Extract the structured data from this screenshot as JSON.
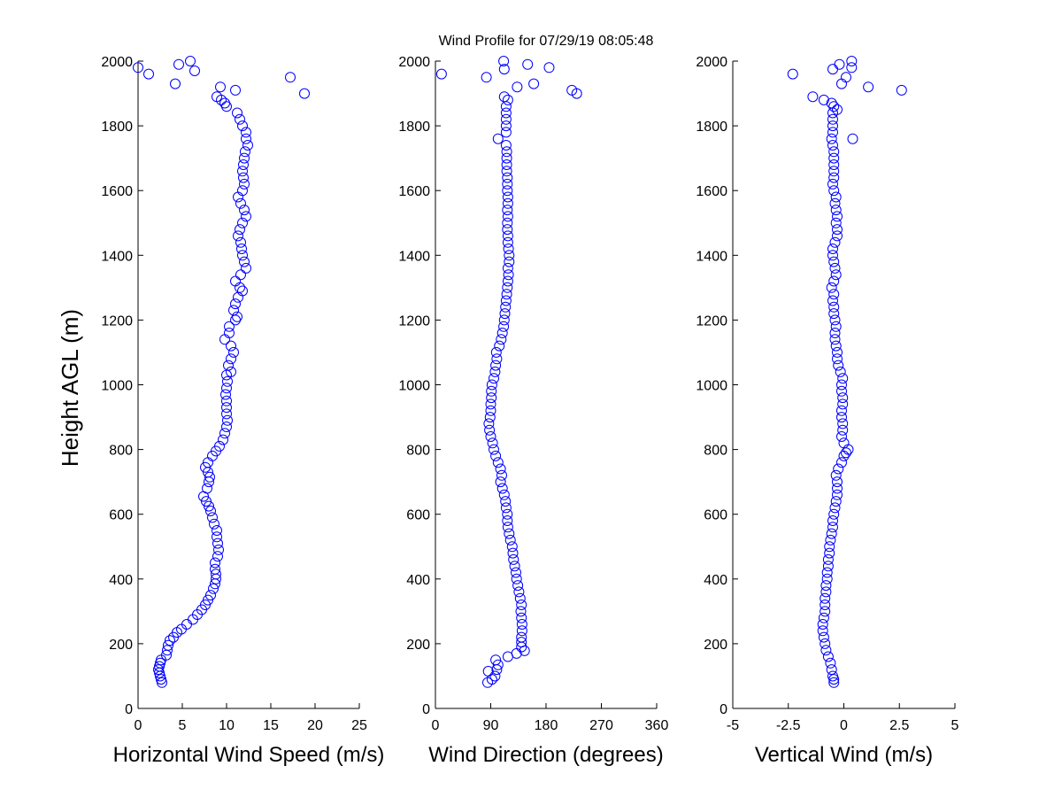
{
  "figure": {
    "title": "Wind Profile for  07/29/19 08:05:48",
    "ylabel": "Height AGL (m)",
    "marker_color": "#0000ff"
  },
  "chart_data": [
    {
      "type": "scatter",
      "name": "horizontal-wind-speed",
      "xlabel": "Horizontal Wind Speed (m/s)",
      "xlim": [
        0,
        25
      ],
      "xticks": [
        0,
        5,
        10,
        15,
        20,
        25
      ],
      "ylim": [
        0,
        2000
      ],
      "yticks": [
        0,
        200,
        400,
        600,
        800,
        1000,
        1200,
        1400,
        1600,
        1800,
        2000
      ],
      "grid": false,
      "points": [
        [
          2.7,
          80
        ],
        [
          2.6,
          90
        ],
        [
          2.5,
          100
        ],
        [
          2.4,
          110
        ],
        [
          2.3,
          120
        ],
        [
          2.4,
          130
        ],
        [
          2.5,
          140
        ],
        [
          2.6,
          150
        ],
        [
          3.2,
          165
        ],
        [
          3.3,
          180
        ],
        [
          3.4,
          195
        ],
        [
          3.6,
          210
        ],
        [
          4.0,
          220
        ],
        [
          4.4,
          235
        ],
        [
          4.9,
          245
        ],
        [
          5.5,
          260
        ],
        [
          6.2,
          275
        ],
        [
          6.7,
          290
        ],
        [
          7.2,
          305
        ],
        [
          7.6,
          320
        ],
        [
          7.9,
          335
        ],
        [
          8.2,
          350
        ],
        [
          8.5,
          370
        ],
        [
          8.7,
          385
        ],
        [
          8.8,
          400
        ],
        [
          8.8,
          415
        ],
        [
          8.7,
          430
        ],
        [
          8.7,
          450
        ],
        [
          9.0,
          470
        ],
        [
          9.1,
          490
        ],
        [
          9.0,
          510
        ],
        [
          8.9,
          530
        ],
        [
          8.9,
          550
        ],
        [
          8.6,
          570
        ],
        [
          8.4,
          590
        ],
        [
          8.2,
          610
        ],
        [
          8.0,
          625
        ],
        [
          7.7,
          640
        ],
        [
          7.4,
          655
        ],
        [
          7.8,
          680
        ],
        [
          8.0,
          700
        ],
        [
          8.1,
          715
        ],
        [
          7.9,
          730
        ],
        [
          7.6,
          745
        ],
        [
          7.9,
          760
        ],
        [
          8.4,
          780
        ],
        [
          8.8,
          795
        ],
        [
          9.2,
          810
        ],
        [
          9.6,
          830
        ],
        [
          9.8,
          850
        ],
        [
          10.0,
          870
        ],
        [
          10.1,
          890
        ],
        [
          10.0,
          910
        ],
        [
          10.0,
          930
        ],
        [
          10.0,
          950
        ],
        [
          9.9,
          970
        ],
        [
          10.0,
          990
        ],
        [
          10.1,
          1010
        ],
        [
          10.0,
          1030
        ],
        [
          10.5,
          1040
        ],
        [
          10.2,
          1060
        ],
        [
          10.5,
          1080
        ],
        [
          10.8,
          1100
        ],
        [
          10.5,
          1120
        ],
        [
          9.8,
          1140
        ],
        [
          10.3,
          1160
        ],
        [
          10.3,
          1180
        ],
        [
          11.0,
          1200
        ],
        [
          11.2,
          1210
        ],
        [
          10.8,
          1230
        ],
        [
          11.0,
          1250
        ],
        [
          11.3,
          1270
        ],
        [
          11.8,
          1290
        ],
        [
          11.5,
          1300
        ],
        [
          11.0,
          1320
        ],
        [
          11.6,
          1340
        ],
        [
          12.2,
          1360
        ],
        [
          12.0,
          1380
        ],
        [
          11.8,
          1400
        ],
        [
          11.7,
          1420
        ],
        [
          11.6,
          1440
        ],
        [
          11.3,
          1460
        ],
        [
          11.5,
          1480
        ],
        [
          11.8,
          1500
        ],
        [
          12.2,
          1520
        ],
        [
          12.0,
          1540
        ],
        [
          11.6,
          1560
        ],
        [
          11.3,
          1580
        ],
        [
          11.8,
          1600
        ],
        [
          12.0,
          1620
        ],
        [
          11.9,
          1640
        ],
        [
          11.8,
          1660
        ],
        [
          11.9,
          1680
        ],
        [
          12.0,
          1700
        ],
        [
          12.1,
          1720
        ],
        [
          12.4,
          1740
        ],
        [
          12.2,
          1760
        ],
        [
          12.2,
          1780
        ],
        [
          11.8,
          1800
        ],
        [
          11.5,
          1820
        ],
        [
          11.2,
          1840
        ],
        [
          10.0,
          1860
        ],
        [
          9.8,
          1870
        ],
        [
          9.4,
          1880
        ],
        [
          8.9,
          1890
        ],
        [
          11.0,
          1910
        ],
        [
          9.3,
          1920
        ],
        [
          17.2,
          1950
        ],
        [
          18.8,
          1900
        ],
        [
          4.2,
          1930
        ],
        [
          1.2,
          1960
        ],
        [
          0.0,
          1980
        ],
        [
          4.6,
          1990
        ],
        [
          5.9,
          2000
        ],
        [
          6.4,
          1970
        ]
      ]
    },
    {
      "type": "scatter",
      "name": "wind-direction",
      "xlabel": "Wind Direction (degrees)",
      "xlim": [
        0,
        360
      ],
      "xticks": [
        0,
        90,
        180,
        270,
        360
      ],
      "ylim": [
        0,
        2000
      ],
      "yticks": [
        0,
        200,
        400,
        600,
        800,
        1000,
        1200,
        1400,
        1600,
        1800,
        2000
      ],
      "grid": false,
      "points": [
        [
          85,
          80
        ],
        [
          92,
          90
        ],
        [
          97,
          100
        ],
        [
          86,
          115
        ],
        [
          100,
          120
        ],
        [
          102,
          135
        ],
        [
          98,
          150
        ],
        [
          118,
          160
        ],
        [
          132,
          170
        ],
        [
          145,
          178
        ],
        [
          140,
          190
        ],
        [
          140,
          205
        ],
        [
          140,
          220
        ],
        [
          141,
          240
        ],
        [
          141,
          260
        ],
        [
          140,
          280
        ],
        [
          139,
          300
        ],
        [
          140,
          320
        ],
        [
          138,
          340
        ],
        [
          136,
          360
        ],
        [
          134,
          380
        ],
        [
          132,
          400
        ],
        [
          131,
          420
        ],
        [
          129,
          440
        ],
        [
          127,
          460
        ],
        [
          126,
          480
        ],
        [
          125,
          500
        ],
        [
          122,
          520
        ],
        [
          120,
          540
        ],
        [
          118,
          560
        ],
        [
          117,
          580
        ],
        [
          117,
          600
        ],
        [
          115,
          620
        ],
        [
          114,
          640
        ],
        [
          112,
          660
        ],
        [
          109,
          680
        ],
        [
          106,
          700
        ],
        [
          108,
          720
        ],
        [
          106,
          740
        ],
        [
          102,
          760
        ],
        [
          98,
          780
        ],
        [
          95,
          800
        ],
        [
          93,
          820
        ],
        [
          90,
          840
        ],
        [
          88,
          860
        ],
        [
          87,
          880
        ],
        [
          89,
          900
        ],
        [
          90,
          920
        ],
        [
          90,
          940
        ],
        [
          91,
          960
        ],
        [
          91,
          980
        ],
        [
          92,
          1000
        ],
        [
          95,
          1020
        ],
        [
          97,
          1040
        ],
        [
          98,
          1060
        ],
        [
          100,
          1080
        ],
        [
          99,
          1100
        ],
        [
          104,
          1120
        ],
        [
          107,
          1140
        ],
        [
          109,
          1160
        ],
        [
          111,
          1180
        ],
        [
          112,
          1200
        ],
        [
          113,
          1220
        ],
        [
          114,
          1240
        ],
        [
          115,
          1260
        ],
        [
          116,
          1280
        ],
        [
          117,
          1300
        ],
        [
          118,
          1320
        ],
        [
          119,
          1340
        ],
        [
          118,
          1360
        ],
        [
          120,
          1380
        ],
        [
          120,
          1400
        ],
        [
          119,
          1420
        ],
        [
          118,
          1440
        ],
        [
          118,
          1460
        ],
        [
          117,
          1480
        ],
        [
          117,
          1500
        ],
        [
          118,
          1520
        ],
        [
          117,
          1540
        ],
        [
          118,
          1560
        ],
        [
          118,
          1580
        ],
        [
          117,
          1600
        ],
        [
          117,
          1620
        ],
        [
          117,
          1640
        ],
        [
          116,
          1660
        ],
        [
          116,
          1680
        ],
        [
          116,
          1700
        ],
        [
          116,
          1720
        ],
        [
          115,
          1740
        ],
        [
          102,
          1760
        ],
        [
          115,
          1780
        ],
        [
          115,
          1800
        ],
        [
          115,
          1820
        ],
        [
          115,
          1840
        ],
        [
          115,
          1860
        ],
        [
          118,
          1880
        ],
        [
          112,
          1890
        ],
        [
          230,
          1900
        ],
        [
          222,
          1910
        ],
        [
          133,
          1920
        ],
        [
          160,
          1930
        ],
        [
          83,
          1950
        ],
        [
          10,
          1960
        ],
        [
          112,
          1975
        ],
        [
          185,
          1980
        ],
        [
          150,
          1990
        ],
        [
          111,
          2000
        ]
      ]
    },
    {
      "type": "scatter",
      "name": "vertical-wind",
      "xlabel": "Vertical Wind (m/s)",
      "xlim": [
        -5,
        5
      ],
      "xticks": [
        -5,
        -2.5,
        0,
        2.5,
        5
      ],
      "xtick_labels": [
        "-5",
        "-2.5",
        "0",
        "2.5",
        "5"
      ],
      "ylim": [
        0,
        2000
      ],
      "yticks": [
        0,
        200,
        400,
        600,
        800,
        1000,
        1200,
        1400,
        1600,
        1800,
        2000
      ],
      "grid": false,
      "points": [
        [
          -0.45,
          80
        ],
        [
          -0.45,
          90
        ],
        [
          -0.5,
          100
        ],
        [
          -0.55,
          120
        ],
        [
          -0.6,
          140
        ],
        [
          -0.7,
          160
        ],
        [
          -0.8,
          180
        ],
        [
          -0.85,
          200
        ],
        [
          -0.9,
          220
        ],
        [
          -0.95,
          240
        ],
        [
          -0.95,
          260
        ],
        [
          -0.9,
          280
        ],
        [
          -0.85,
          300
        ],
        [
          -0.85,
          320
        ],
        [
          -0.85,
          340
        ],
        [
          -0.8,
          360
        ],
        [
          -0.8,
          380
        ],
        [
          -0.75,
          400
        ],
        [
          -0.75,
          420
        ],
        [
          -0.7,
          440
        ],
        [
          -0.7,
          460
        ],
        [
          -0.65,
          480
        ],
        [
          -0.65,
          500
        ],
        [
          -0.6,
          520
        ],
        [
          -0.55,
          540
        ],
        [
          -0.5,
          560
        ],
        [
          -0.5,
          580
        ],
        [
          -0.45,
          600
        ],
        [
          -0.4,
          620
        ],
        [
          -0.35,
          640
        ],
        [
          -0.3,
          660
        ],
        [
          -0.3,
          680
        ],
        [
          -0.3,
          700
        ],
        [
          -0.35,
          720
        ],
        [
          -0.25,
          740
        ],
        [
          -0.1,
          760
        ],
        [
          0.0,
          780
        ],
        [
          0.1,
          790
        ],
        [
          0.2,
          800
        ],
        [
          0.0,
          820
        ],
        [
          -0.1,
          840
        ],
        [
          -0.05,
          860
        ],
        [
          -0.05,
          880
        ],
        [
          -0.1,
          900
        ],
        [
          -0.1,
          920
        ],
        [
          -0.05,
          940
        ],
        [
          -0.05,
          960
        ],
        [
          -0.1,
          980
        ],
        [
          -0.1,
          1000
        ],
        [
          -0.05,
          1020
        ],
        [
          -0.15,
          1040
        ],
        [
          -0.25,
          1060
        ],
        [
          -0.3,
          1080
        ],
        [
          -0.3,
          1100
        ],
        [
          -0.35,
          1120
        ],
        [
          -0.4,
          1140
        ],
        [
          -0.4,
          1160
        ],
        [
          -0.35,
          1180
        ],
        [
          -0.4,
          1200
        ],
        [
          -0.45,
          1220
        ],
        [
          -0.45,
          1240
        ],
        [
          -0.5,
          1260
        ],
        [
          -0.45,
          1280
        ],
        [
          -0.55,
          1300
        ],
        [
          -0.45,
          1320
        ],
        [
          -0.35,
          1340
        ],
        [
          -0.4,
          1360
        ],
        [
          -0.45,
          1380
        ],
        [
          -0.5,
          1400
        ],
        [
          -0.5,
          1420
        ],
        [
          -0.4,
          1440
        ],
        [
          -0.3,
          1460
        ],
        [
          -0.3,
          1480
        ],
        [
          -0.35,
          1500
        ],
        [
          -0.3,
          1520
        ],
        [
          -0.35,
          1540
        ],
        [
          -0.4,
          1560
        ],
        [
          -0.35,
          1580
        ],
        [
          -0.45,
          1600
        ],
        [
          -0.5,
          1620
        ],
        [
          -0.45,
          1640
        ],
        [
          -0.45,
          1660
        ],
        [
          -0.45,
          1680
        ],
        [
          -0.45,
          1700
        ],
        [
          -0.45,
          1720
        ],
        [
          -0.5,
          1740
        ],
        [
          -0.55,
          1760
        ],
        [
          -0.5,
          1780
        ],
        [
          -0.5,
          1800
        ],
        [
          -0.5,
          1820
        ],
        [
          -0.5,
          1840
        ],
        [
          -0.45,
          1860
        ],
        [
          -0.3,
          1850
        ],
        [
          -0.55,
          1870
        ],
        [
          0.4,
          1760
        ],
        [
          -1.4,
          1890
        ],
        [
          -0.9,
          1880
        ],
        [
          1.1,
          1920
        ],
        [
          2.6,
          1910
        ],
        [
          -0.1,
          1930
        ],
        [
          0.1,
          1950
        ],
        [
          -2.3,
          1960
        ],
        [
          -0.5,
          1975
        ],
        [
          0.35,
          1980
        ],
        [
          -0.2,
          1990
        ],
        [
          0.35,
          2000
        ]
      ]
    }
  ]
}
